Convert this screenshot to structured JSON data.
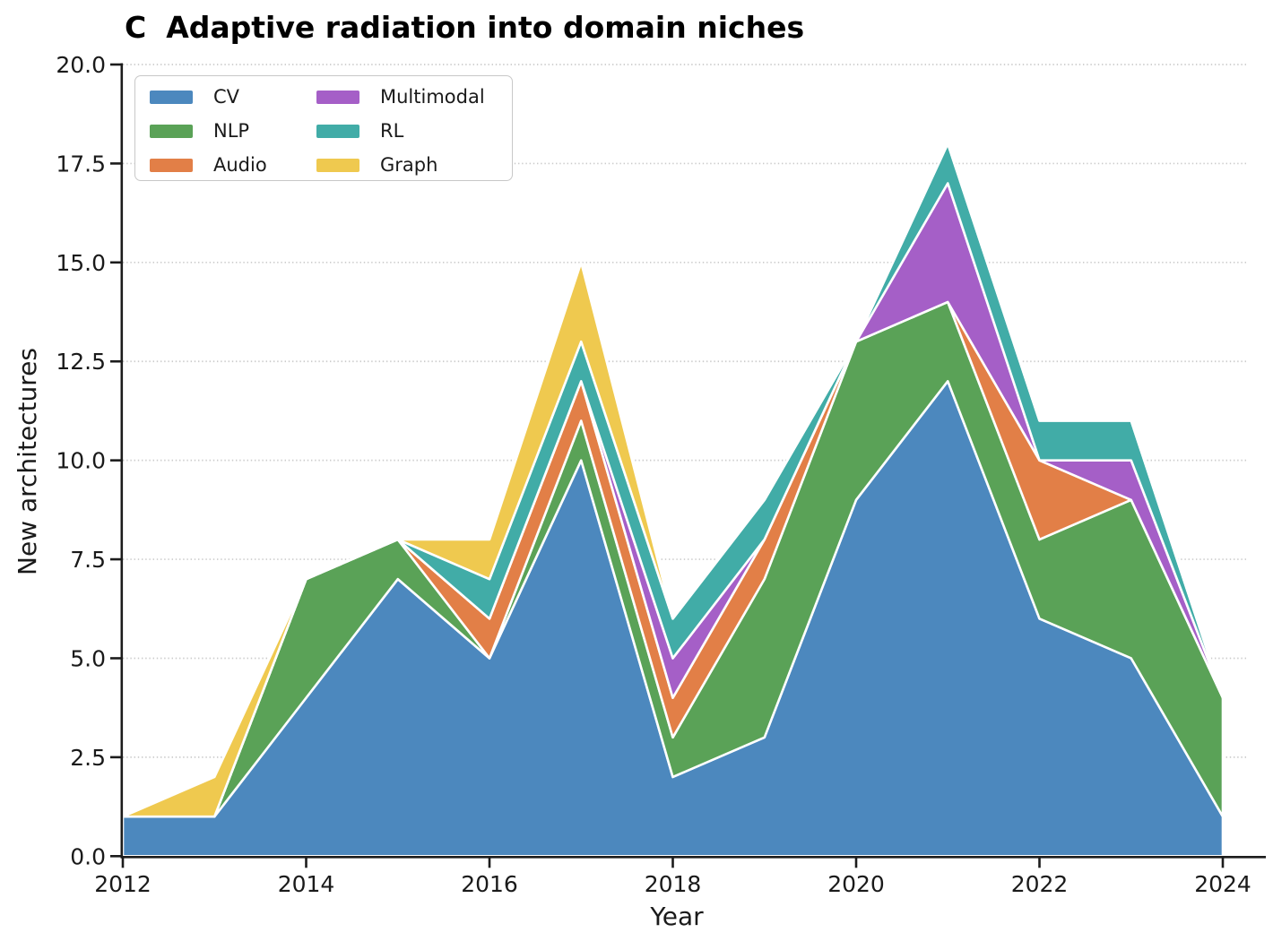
{
  "figure": {
    "panel_label": "C",
    "title": "Adaptive radiation into domain niches"
  },
  "chart_data": {
    "type": "area",
    "stacked": true,
    "title": "C  Adaptive radiation into domain niches",
    "xlabel": "Year",
    "ylabel": "New architectures",
    "x": [
      2012,
      2013,
      2014,
      2015,
      2016,
      2017,
      2018,
      2019,
      2020,
      2021,
      2022,
      2023,
      2024
    ],
    "series": [
      {
        "name": "CV",
        "color": "#4C88BE",
        "values": [
          1,
          1,
          4,
          7,
          5,
          10,
          2,
          3,
          9,
          12,
          6,
          5,
          1
        ]
      },
      {
        "name": "NLP",
        "color": "#5AA257",
        "values": [
          0,
          0,
          3,
          1,
          0,
          1,
          1,
          4,
          4,
          2,
          2,
          4,
          3
        ]
      },
      {
        "name": "Audio",
        "color": "#E27F47",
        "values": [
          0,
          0,
          0,
          0,
          1,
          1,
          1,
          1,
          0,
          0,
          2,
          0,
          0
        ]
      },
      {
        "name": "Multimodal",
        "color": "#A55FC7",
        "values": [
          0,
          0,
          0,
          0,
          0,
          0,
          1,
          0,
          0,
          3,
          0,
          1,
          0
        ]
      },
      {
        "name": "RL",
        "color": "#41ACA7",
        "values": [
          0,
          0,
          0,
          0,
          1,
          1,
          1,
          1,
          0,
          1,
          1,
          1,
          0
        ]
      },
      {
        "name": "Graph",
        "color": "#EFC94F",
        "values": [
          0,
          1,
          0,
          0,
          1,
          2,
          0,
          0,
          0,
          0,
          0,
          0,
          0
        ]
      }
    ],
    "xlim": [
      2012,
      2024
    ],
    "ylim": [
      0,
      20
    ],
    "x_ticks": [
      "2012",
      "2014",
      "2016",
      "2018",
      "2020",
      "2022",
      "2024"
    ],
    "x_tick_years": [
      2012,
      2014,
      2016,
      2018,
      2020,
      2022,
      2024
    ],
    "y_ticks": [
      "0.0",
      "2.5",
      "5.0",
      "7.5",
      "10.0",
      "12.5",
      "15.0",
      "17.5",
      "20.0"
    ],
    "y_tick_values": [
      0,
      2.5,
      5,
      7.5,
      10,
      12.5,
      15,
      17.5,
      20
    ],
    "grid": "horizontal-dotted",
    "legend_position": "upper-left",
    "colors": {
      "grid": "#cbcbcb",
      "spine": "#1c1c1c",
      "tick_text": "#1a1a1a",
      "area_edge": "#ffffff",
      "background": "#ffffff"
    }
  }
}
